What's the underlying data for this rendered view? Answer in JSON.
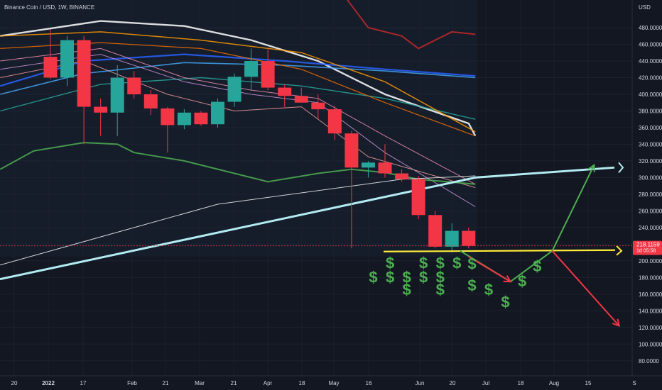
{
  "header": {
    "symbol_line": "Binance Coin / USD, 1W, BINANCE",
    "currency": "USD"
  },
  "price_tag": {
    "value": "218.1159",
    "countdown": "1d 05:58"
  },
  "colors": {
    "background": "#131722",
    "bull": "#26a69a",
    "bear": "#f23645",
    "support_line": "#ffeb3b",
    "long_trend_line": "#b2ebf2",
    "projection_up": "#4caf50",
    "projection_down": "#f23645",
    "dollar_sign": "#4caf50"
  },
  "chart_data": {
    "type": "candlestick",
    "y_axis": {
      "ticks": [
        "480.0000",
        "460.0000",
        "440.0000",
        "420.0000",
        "400.0000",
        "380.0000",
        "360.0000",
        "340.0000",
        "320.0000",
        "300.0000",
        "280.0000",
        "260.0000",
        "240.0000",
        "220.0000",
        "200.0000",
        "180.0000",
        "160.0000",
        "140.0000",
        "120.0000",
        "100.0000",
        "80.0000"
      ]
    },
    "x_axis": {
      "ticks": [
        "20",
        "2022",
        "17",
        "Feb",
        "21",
        "Mar",
        "21",
        "Apr",
        "18",
        "May",
        "16",
        "Jun",
        "20",
        "Jul",
        "18",
        "Aug",
        "15",
        "S"
      ]
    },
    "candles": [
      {
        "open": 445,
        "high": 478,
        "low": 418,
        "close": 420
      },
      {
        "open": 420,
        "high": 470,
        "low": 410,
        "close": 465
      },
      {
        "open": 465,
        "high": 470,
        "low": 340,
        "close": 385
      },
      {
        "open": 385,
        "high": 395,
        "low": 350,
        "close": 378
      },
      {
        "open": 378,
        "high": 435,
        "low": 350,
        "close": 420
      },
      {
        "open": 420,
        "high": 428,
        "low": 395,
        "close": 400
      },
      {
        "open": 400,
        "high": 405,
        "low": 375,
        "close": 383
      },
      {
        "open": 383,
        "high": 385,
        "low": 330,
        "close": 363
      },
      {
        "open": 363,
        "high": 382,
        "low": 358,
        "close": 378
      },
      {
        "open": 378,
        "high": 380,
        "low": 362,
        "close": 364
      },
      {
        "open": 364,
        "high": 395,
        "low": 360,
        "close": 391
      },
      {
        "open": 391,
        "high": 425,
        "low": 385,
        "close": 421
      },
      {
        "open": 421,
        "high": 455,
        "low": 405,
        "close": 440
      },
      {
        "open": 440,
        "high": 455,
        "low": 405,
        "close": 408
      },
      {
        "open": 408,
        "high": 412,
        "low": 385,
        "close": 398
      },
      {
        "open": 398,
        "high": 408,
        "low": 390,
        "close": 390
      },
      {
        "open": 390,
        "high": 400,
        "low": 370,
        "close": 382
      },
      {
        "open": 382,
        "high": 386,
        "low": 345,
        "close": 353
      },
      {
        "open": 353,
        "high": 356,
        "low": 215,
        "close": 312
      },
      {
        "open": 312,
        "high": 320,
        "low": 300,
        "close": 318
      },
      {
        "open": 318,
        "high": 340,
        "low": 300,
        "close": 305
      },
      {
        "open": 305,
        "high": 310,
        "low": 295,
        "close": 298
      },
      {
        "open": 298,
        "high": 302,
        "low": 250,
        "close": 255
      },
      {
        "open": 255,
        "high": 260,
        "low": 215,
        "close": 217
      },
      {
        "open": 217,
        "high": 245,
        "low": 210,
        "close": 236
      },
      {
        "open": 236,
        "high": 240,
        "low": 215,
        "close": 218
      }
    ],
    "support_level": 212,
    "current_price": 218.1159,
    "projection_paths": [
      {
        "name": "",
        "points": [
          [
            24.5,
            212
          ],
          [
            27.5,
            175
          ],
          [
            30,
            212
          ],
          [
            32.5,
            315
          ]
        ],
        "color": "#4caf50"
      },
      {
        "name": "",
        "points": [
          [
            25,
            205
          ],
          [
            27.5,
            175
          ]
        ],
        "color": "#f23645"
      },
      {
        "name": "",
        "points": [
          [
            30,
            212
          ],
          [
            34,
            122
          ]
        ],
        "color": "#f23645"
      }
    ],
    "dollar_signs": [
      {
        "x": 20.3,
        "y": 197
      },
      {
        "x": 22.3,
        "y": 197
      },
      {
        "x": 23.3,
        "y": 197
      },
      {
        "x": 24.3,
        "y": 197
      },
      {
        "x": 19.3,
        "y": 180
      },
      {
        "x": 20.3,
        "y": 180
      },
      {
        "x": 21.3,
        "y": 180
      },
      {
        "x": 22.3,
        "y": 180
      },
      {
        "x": 23.3,
        "y": 180
      },
      {
        "x": 21.3,
        "y": 165
      },
      {
        "x": 23.3,
        "y": 165
      },
      {
        "x": 25.2,
        "y": 196
      },
      {
        "x": 25.2,
        "y": 170
      },
      {
        "x": 26.2,
        "y": 165
      },
      {
        "x": 27.2,
        "y": 150
      },
      {
        "x": 28.2,
        "y": 175
      },
      {
        "x": 29.1,
        "y": 193
      }
    ]
  }
}
